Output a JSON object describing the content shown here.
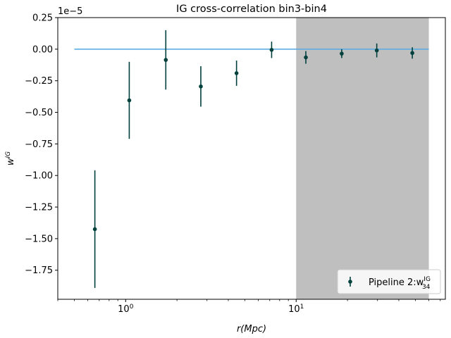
{
  "chart_data": {
    "type": "scatter",
    "title": "IG cross-correlation bin3-bin4",
    "xlabel": "r(Mpc)",
    "ylabel": "w^IG",
    "x_scale": "log",
    "xlim": [
      0.4,
      75
    ],
    "ylim": [
      -1.98e-05,
      2.5e-06
    ],
    "y_offset_label": "1e−5",
    "y_ticks": [
      0.25,
      0.0,
      -0.25,
      -0.5,
      -0.75,
      -1.0,
      -1.25,
      -1.5,
      -1.75
    ],
    "y_tick_labels": [
      "0.25",
      "0.00",
      "−0.25",
      "−0.50",
      "−0.75",
      "−1.00",
      "−1.25",
      "−1.50",
      "−1.75"
    ],
    "x_major_ticks": [
      1,
      10
    ],
    "x_tick_labels": [
      {
        "base": "10",
        "exp": "0"
      },
      {
        "base": "10",
        "exp": "1"
      }
    ],
    "grid": false,
    "shaded_region": {
      "x_from": 10,
      "x_to": 60,
      "color": "#bfbfbf"
    },
    "reference_line": {
      "y": 0.0,
      "x_from": 0.5,
      "x_to": 60,
      "color": "#5dade2"
    },
    "series": [
      {
        "name": "Pipeline 2:w",
        "name_sup": "IG",
        "name_sub": "34",
        "color": "#00403d",
        "x": [
          0.66,
          1.05,
          1.72,
          2.76,
          4.47,
          7.18,
          11.4,
          18.5,
          29.7,
          48.0
        ],
        "y": [
          -1.425e-05,
          -4.05e-06,
          -8.5e-07,
          -2.95e-06,
          -1.9e-06,
          -5e-08,
          -6.5e-07,
          -3.5e-07,
          -1e-07,
          -3e-07
        ],
        "yerr": [
          4.65e-06,
          3.05e-06,
          2.35e-06,
          1.6e-06,
          1e-06,
          6.5e-07,
          5e-07,
          3.5e-07,
          5.5e-07,
          4.5e-07
        ]
      }
    ],
    "legend": "lower-right"
  }
}
